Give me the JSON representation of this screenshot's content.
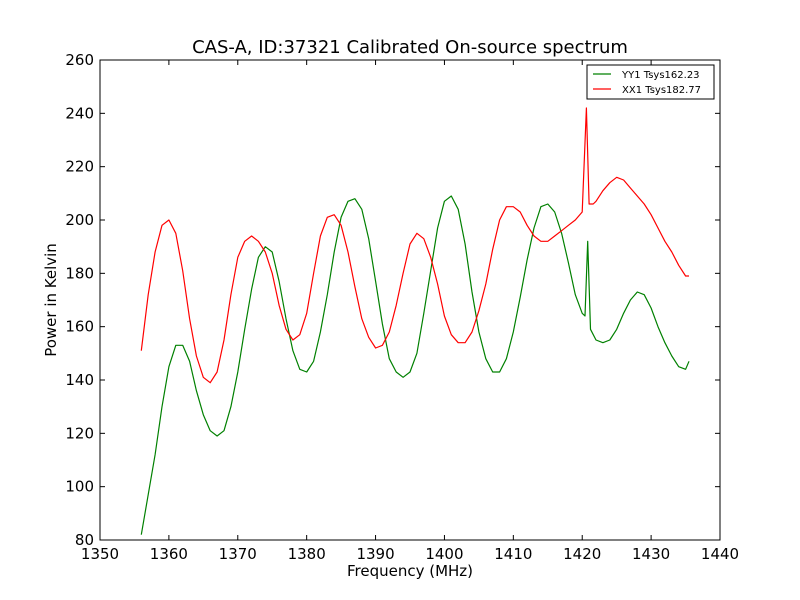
{
  "chart_data": {
    "type": "line",
    "title": "CAS-A, ID:37321 Calibrated On-source spectrum",
    "xlabel": "Frequency (MHz)",
    "ylabel": "Power in Kelvin",
    "xlim": [
      1350,
      1440
    ],
    "ylim": [
      80,
      260
    ],
    "xticks": [
      "1350",
      "1360",
      "1370",
      "1380",
      "1390",
      "1400",
      "1410",
      "1420",
      "1430",
      "1440"
    ],
    "yticks": [
      "80",
      "100",
      "120",
      "140",
      "160",
      "180",
      "200",
      "220",
      "240",
      "260"
    ],
    "grid": false,
    "legend_position": "top-right",
    "series": [
      {
        "name": "YY1 Tsys162.23",
        "color": "#008000",
        "x": [
          1356,
          1357,
          1358,
          1359,
          1360,
          1361,
          1362,
          1363,
          1364,
          1365,
          1366,
          1367,
          1368,
          1369,
          1370,
          1371,
          1372,
          1373,
          1374,
          1375,
          1376,
          1377,
          1378,
          1379,
          1380,
          1381,
          1382,
          1383,
          1384,
          1385,
          1386,
          1387,
          1388,
          1389,
          1390,
          1391,
          1392,
          1393,
          1394,
          1395,
          1396,
          1397,
          1398,
          1399,
          1400,
          1401,
          1402,
          1403,
          1404,
          1405,
          1406,
          1407,
          1408,
          1409,
          1410,
          1411,
          1412,
          1413,
          1414,
          1415,
          1416,
          1417,
          1418,
          1419,
          1420,
          1420.4,
          1420.8,
          1421.2,
          1422,
          1423,
          1424,
          1425,
          1426,
          1427,
          1428,
          1429,
          1430,
          1431,
          1432,
          1433,
          1434,
          1435,
          1435.5
        ],
        "values": [
          82,
          97,
          112,
          130,
          145,
          153,
          153,
          147,
          136,
          127,
          121,
          119,
          121,
          130,
          143,
          159,
          174,
          186,
          190,
          188,
          177,
          163,
          151,
          144,
          143,
          147,
          158,
          172,
          188,
          201,
          207,
          208,
          204,
          193,
          177,
          161,
          148,
          143,
          141,
          143,
          150,
          165,
          181,
          197,
          207,
          209,
          204,
          191,
          173,
          158,
          148,
          143,
          143,
          148,
          158,
          171,
          185,
          197,
          205,
          206,
          203,
          195,
          184,
          172,
          165,
          164,
          192,
          159,
          155,
          154,
          155,
          159,
          165,
          170,
          173,
          172,
          167,
          160,
          154,
          149,
          145,
          144,
          147
        ]
      },
      {
        "name": "XX1 Tsys182.77",
        "color": "#ff0000",
        "x": [
          1356,
          1357,
          1358,
          1359,
          1360,
          1361,
          1362,
          1363,
          1364,
          1365,
          1366,
          1367,
          1368,
          1369,
          1370,
          1371,
          1372,
          1373,
          1374,
          1375,
          1376,
          1377,
          1378,
          1379,
          1380,
          1381,
          1382,
          1383,
          1384,
          1385,
          1386,
          1387,
          1388,
          1389,
          1390,
          1391,
          1392,
          1393,
          1394,
          1395,
          1396,
          1397,
          1398,
          1399,
          1400,
          1401,
          1402,
          1403,
          1404,
          1405,
          1406,
          1407,
          1408,
          1409,
          1410,
          1411,
          1412,
          1413,
          1414,
          1415,
          1416,
          1417,
          1418,
          1419,
          1420,
          1420.6,
          1421,
          1421.6,
          1422,
          1423,
          1424,
          1425,
          1426,
          1427,
          1428,
          1429,
          1430,
          1431,
          1432,
          1433,
          1434,
          1435,
          1435.5
        ],
        "values": [
          151,
          172,
          188,
          198,
          200,
          195,
          181,
          163,
          149,
          141,
          139,
          143,
          155,
          172,
          186,
          192,
          194,
          192,
          188,
          180,
          168,
          159,
          155,
          157,
          165,
          180,
          194,
          201,
          202,
          198,
          188,
          175,
          163,
          156,
          152,
          153,
          158,
          168,
          180,
          191,
          195,
          193,
          186,
          176,
          164,
          157,
          154,
          154,
          158,
          166,
          176,
          189,
          200,
          205,
          205,
          203,
          198,
          194,
          192,
          192,
          194,
          196,
          198,
          200,
          203,
          242,
          206,
          206,
          207,
          211,
          214,
          216,
          215,
          212,
          209,
          206,
          202,
          197,
          192,
          188,
          183,
          179,
          179
        ]
      }
    ]
  }
}
